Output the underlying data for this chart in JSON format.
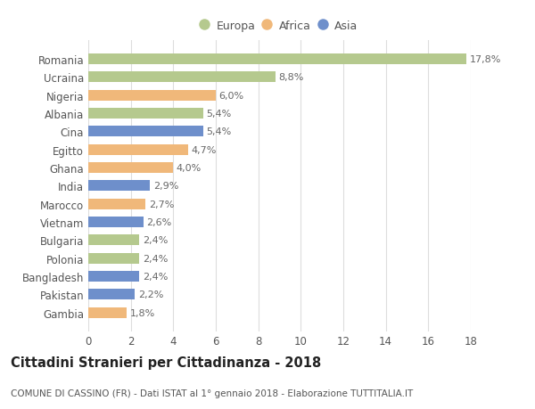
{
  "categories": [
    "Romania",
    "Ucraina",
    "Nigeria",
    "Albania",
    "Cina",
    "Egitto",
    "Ghana",
    "India",
    "Marocco",
    "Vietnam",
    "Bulgaria",
    "Polonia",
    "Bangladesh",
    "Pakistan",
    "Gambia"
  ],
  "values": [
    17.8,
    8.8,
    6.0,
    5.4,
    5.4,
    4.7,
    4.0,
    2.9,
    2.7,
    2.6,
    2.4,
    2.4,
    2.4,
    2.2,
    1.8
  ],
  "labels": [
    "17,8%",
    "8,8%",
    "6,0%",
    "5,4%",
    "5,4%",
    "4,7%",
    "4,0%",
    "2,9%",
    "2,7%",
    "2,6%",
    "2,4%",
    "2,4%",
    "2,4%",
    "2,2%",
    "1,8%"
  ],
  "colors": [
    "#b5c98e",
    "#b5c98e",
    "#f0b87a",
    "#b5c98e",
    "#6e8fcb",
    "#f0b87a",
    "#f0b87a",
    "#6e8fcb",
    "#f0b87a",
    "#6e8fcb",
    "#b5c98e",
    "#b5c98e",
    "#6e8fcb",
    "#6e8fcb",
    "#f0b87a"
  ],
  "legend_labels": [
    "Europa",
    "Africa",
    "Asia"
  ],
  "legend_colors": [
    "#b5c98e",
    "#f0b87a",
    "#6e8fcb"
  ],
  "title": "Cittadini Stranieri per Cittadinanza - 2018",
  "subtitle": "COMUNE DI CASSINO (FR) - Dati ISTAT al 1° gennaio 2018 - Elaborazione TUTTITALIA.IT",
  "xlim": [
    0,
    18
  ],
  "xticks": [
    0,
    2,
    4,
    6,
    8,
    10,
    12,
    14,
    16,
    18
  ],
  "background_color": "#ffffff",
  "bar_height": 0.6,
  "label_fontsize": 8,
  "tick_fontsize": 8.5,
  "ytick_fontsize": 8.5,
  "title_fontsize": 10.5,
  "subtitle_fontsize": 7.5
}
